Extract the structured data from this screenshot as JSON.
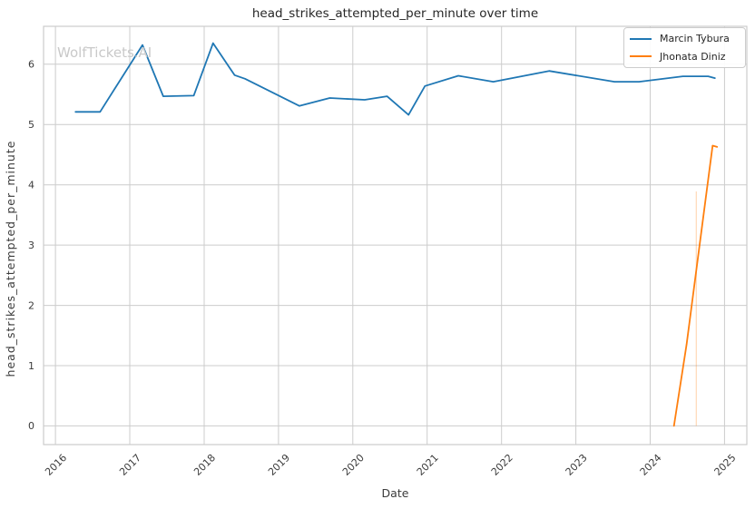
{
  "watermark": {
    "text": "WolfTickets.AI"
  },
  "colors": {
    "series_blue": "#1f77b4",
    "series_orange": "#ff7f0e",
    "grid": "#cccccc",
    "spine": "#cccccc",
    "tick_text": "#3b3b3b",
    "title_text": "#262626",
    "watermark_text": "#c9c9c9",
    "background": "#ffffff"
  },
  "chart_data": {
    "type": "line",
    "title": "head_strikes_attempted_per_minute over time",
    "xlabel": "Date",
    "ylabel": "head_strikes_attempted_per_minute",
    "x_ticks": [
      2016,
      2017,
      2018,
      2019,
      2020,
      2021,
      2022,
      2023,
      2024,
      2025
    ],
    "y_ticks": [
      0,
      1,
      2,
      3,
      4,
      5,
      6
    ],
    "xlim": [
      2015.84,
      2025.3
    ],
    "ylim": [
      -0.31,
      6.63
    ],
    "grid": true,
    "legend_position": "upper-right",
    "series": [
      {
        "name": "Marcin Tybura",
        "color": "#1f77b4",
        "points": [
          [
            2016.27,
            5.21
          ],
          [
            2016.6,
            5.21
          ],
          [
            2017.17,
            6.32
          ],
          [
            2017.45,
            5.47
          ],
          [
            2017.86,
            5.48
          ],
          [
            2018.12,
            6.35
          ],
          [
            2018.41,
            5.82
          ],
          [
            2018.55,
            5.76
          ],
          [
            2019.28,
            5.31
          ],
          [
            2019.69,
            5.44
          ],
          [
            2020.16,
            5.41
          ],
          [
            2020.46,
            5.47
          ],
          [
            2020.75,
            5.16
          ],
          [
            2020.97,
            5.64
          ],
          [
            2021.42,
            5.81
          ],
          [
            2021.89,
            5.71
          ],
          [
            2022.64,
            5.89
          ],
          [
            2023.52,
            5.71
          ],
          [
            2023.85,
            5.71
          ],
          [
            2024.44,
            5.8
          ],
          [
            2024.78,
            5.8
          ],
          [
            2024.87,
            5.77
          ]
        ]
      },
      {
        "name": "Jhonata Diniz",
        "color": "#ff7f0e",
        "points": [
          [
            2024.32,
            0.0
          ],
          [
            2024.49,
            1.35
          ],
          [
            2024.84,
            4.65
          ],
          [
            2024.9,
            4.63
          ]
        ]
      }
    ],
    "annotations": [
      {
        "type": "vline",
        "x": 2024.62,
        "y_from": 0.0,
        "y_to": 3.89,
        "color": "#ff7f0e",
        "opacity": 0.3
      }
    ]
  }
}
